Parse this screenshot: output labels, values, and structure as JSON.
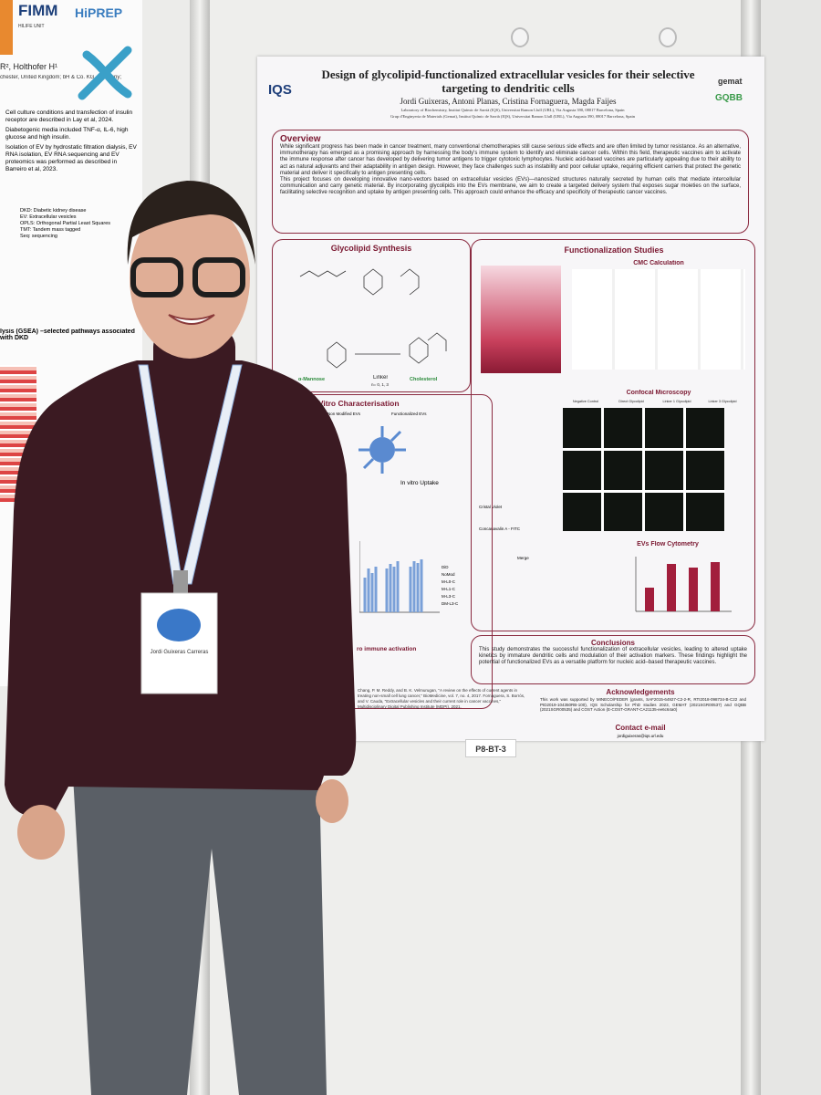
{
  "poster": {
    "title": "Design of glycolipid-functionalized extracellular vesicles for their selective targeting to dendritic cells",
    "authors": "Jordi Guixeras, Antoni Planas, Cristina Fornaguera, Magda Faijes",
    "affiliation_a": "Laboratory of Biochemistry, Institut Químic de Sarrià (IQS), Universitat Ramon Llull (URL), Via Augusta 390, 08017 Barcelona, Spain",
    "affiliation_b": "Grup d'Enginyeria de Materials (Gemat), Institut Químic de Sarrià (IQS), Universitat Ramon Llull (URL), Via Augusta 390, 08017 Barcelona, Spain",
    "logo_left": "IQS",
    "logo_right_1": "gemat",
    "logo_right_2": "GQBB",
    "overview": {
      "heading": "Overview",
      "p1": "While significant progress has been made in cancer treatment, many conventional chemotherapies still cause serious side effects and are often limited by tumor resistance. As an alternative, immunotherapy has emerged as a promising approach by harnessing the body's immune system to identify and eliminate cancer cells. Within this field, therapeutic vaccines aim to activate the immune response after cancer has developed by delivering tumor antigens to trigger cytotoxic lymphocytes. Nucleic acid-based vaccines are particularly appealing due to their ability to act as natural adjuvants and their adaptability in antigen design. However, they face challenges such as instability and poor cellular uptake, requiring efficient carriers that protect the genetic material and deliver it specifically to antigen presenting cells.",
      "p2": "This project focuses on developing innovative nano-vectors based on extracellular vesicles (EVs)—nanosized structures naturally secreted by human cells that mediate intercellular communication and carry genetic material. By incorporating glycolipids into the EVs membrane, we aim to create a targeted delivery system that exposes sugar moieties on the surface, facilitating selective recognition and uptake by antigen presenting cells. This approach could enhance the efficacy and specificity of therapeutic cancer vaccines."
    },
    "synthesis": {
      "heading": "Glycolipid Synthesis",
      "mannose": "α-Mannose",
      "linker": "Linker",
      "cholesterol": "Cholesterol",
      "n": "n= 0, 1, 3"
    },
    "functionalization": {
      "heading": "Functionalization Studies",
      "cmc": "CMC Calculation",
      "confocal": "Confocal Microscopy",
      "columns": [
        "Negative Control",
        "Direct Glycolipid",
        "Linker 1 Glycolipid",
        "Linker 3 Glycolipid"
      ],
      "crystal": "Cristal Violet",
      "conca": "Concanavalin A - FITC",
      "merge": "Merge",
      "flow": "EVs Flow Cytometry"
    },
    "characterisation": {
      "heading": "In Vitro Characterisation",
      "nonmod": "Non Modified EVs",
      "func": "Functionalized EVs",
      "uptake": "In vitro Uptake",
      "activation": "ro immune activation",
      "legend": [
        "DiD",
        "NoMod",
        "M-L0-C",
        "M-L1-C",
        "M-L3-C",
        "DM-L3-C"
      ]
    },
    "conclusions": {
      "heading": "Conclusions",
      "text": "This study demonstrates the successful functionalization of extracellular vesicles, leading to altered uptake kinetics by immature dendritic cells and modulation of their activation markers. These findings highlight the potential of functionalized EVs as a versatile platform for nucleic acid–based therapeutic vaccines."
    },
    "acknowledgements": {
      "heading": "Acknowledgements",
      "text": "This work was supported by MINECO/FEDER (grants, SAF2015-64927-C2-2-R, RTI2018-098734-B-C22 and PID2019-104350RB-100), IQS Scholarship for PhD studies 2023, GEMAT (2021SGR00537) and GQBB (2021SGR00535) and COST Action (E-COST-GRANT-CA21135-ee6c64a0)"
    },
    "contact": {
      "heading": "Contact e-mail",
      "email": "jordiguixeras@iqs.url.edu"
    },
    "references": "Chang, P. M. Reddy, and B. K. Velmurugan, \"A review on the effects of current agents in treating non-small cell lung cancer,\" BioMedicine, vol. 7, no. 4, 2017. Fornaguera, S. Borrós, and V. Cauda, \"Extracellular vesicles and their current role in cancer vaccines,\" Multidisciplinary Digital Publishing Institute (MDPI), 2021."
  },
  "board_label": "P8-BT-3",
  "left_poster": {
    "logo_1": "FIMM",
    "logo_2": "HiPREP",
    "unit": "HILIFE UNIT",
    "authors": "R², Holthofer H¹",
    "affil": "chester, United Kingdom; bH & Co. KG, Germany;",
    "bullets": [
      "Cell culture conditions and transfection of insulin receptor are described in Lay et al, 2024.",
      "Diabetogenic media included TNF-α, IL-6, high glucose and high insulin.",
      "Isolation of EV by hydrostatic filtration dialysis, EV RNA isolation, EV RNA sequencing and EV proteomics was performed as described in Barreiro et al, 2023."
    ],
    "abbrev": [
      "DKD: Diabetic kidney disease",
      "EV: Extracellular vesicles",
      "OPLS: Orthogonal Partial Least Squares",
      "TMT: Tandem mass tagged",
      "Seq: sequencing"
    ],
    "gsea": "lysis (GSEA) –selected pathways associated with DKD"
  },
  "badge": {
    "name": "Jordi Guixeras Carreras"
  }
}
